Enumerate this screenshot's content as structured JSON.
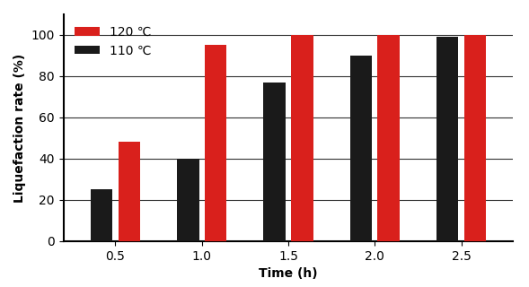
{
  "chart_data": {
    "type": "bar",
    "x_label": "Time (h)",
    "y_label": "Liquefaction rate (%)",
    "categories": [
      "0.5",
      "1.0",
      "1.5",
      "2.0",
      "2.5"
    ],
    "series": [
      {
        "name": "110 ℃",
        "color": "#1a1a1a",
        "values": [
          25,
          40,
          77,
          90,
          99
        ]
      },
      {
        "name": "120 ℃",
        "color": "#d9201c",
        "values": [
          48,
          95,
          100,
          100,
          100
        ]
      }
    ],
    "ylim": [
      0,
      110
    ],
    "yticks": [
      0,
      20,
      40,
      60,
      80,
      100
    ],
    "grid": true,
    "legend": "upper left"
  }
}
